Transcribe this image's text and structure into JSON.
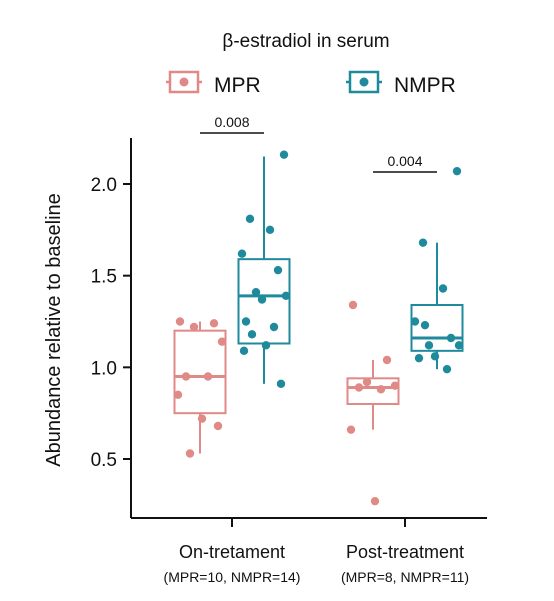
{
  "chart_data": {
    "type": "box",
    "title": "β-estradiol in serum",
    "ylabel": "Abundance relative to baseline",
    "ylim": [
      0.0,
      2.3
    ],
    "yticks": [
      0.5,
      1.0,
      1.5,
      2.0
    ],
    "ytick_labels": [
      "0.5",
      "1.0",
      "1.5",
      "2.0"
    ],
    "legend_position": "top",
    "categories": [
      {
        "label": "On-tretament",
        "sublabel": "(MPR=10, NMPR=14)",
        "pvalue": "0.008"
      },
      {
        "label": "Post-treatment",
        "sublabel": "(MPR=8, NMPR=11)",
        "pvalue": "0.004"
      }
    ],
    "series": [
      {
        "name": "MPR",
        "color": "#e08a87",
        "boxes": [
          {
            "min": 0.53,
            "q1": 0.75,
            "median": 0.95,
            "q3": 1.2,
            "max": 1.25,
            "points": [
              1.25,
              1.24,
              1.22,
              1.14,
              0.95,
              0.95,
              0.85,
              0.72,
              0.68,
              0.53
            ]
          },
          {
            "min": 0.66,
            "q1": 0.8,
            "median": 0.89,
            "q3": 0.94,
            "max": 1.04,
            "points": [
              1.34,
              1.04,
              0.92,
              0.9,
              0.89,
              0.88,
              0.66,
              0.27
            ]
          }
        ]
      },
      {
        "name": "NMPR",
        "color": "#1f8a9c",
        "boxes": [
          {
            "min": 0.91,
            "q1": 1.13,
            "median": 1.39,
            "q3": 1.59,
            "max": 2.15,
            "points": [
              2.16,
              1.81,
              1.75,
              1.62,
              1.53,
              1.41,
              1.39,
              1.37,
              1.25,
              1.22,
              1.18,
              1.12,
              1.09,
              0.91
            ]
          },
          {
            "min": 0.99,
            "q1": 1.09,
            "median": 1.16,
            "q3": 1.34,
            "max": 1.68,
            "points": [
              2.07,
              1.68,
              1.43,
              1.25,
              1.16,
              1.12,
              1.12,
              1.06,
              1.05,
              0.99,
              1.23
            ]
          }
        ]
      }
    ]
  }
}
